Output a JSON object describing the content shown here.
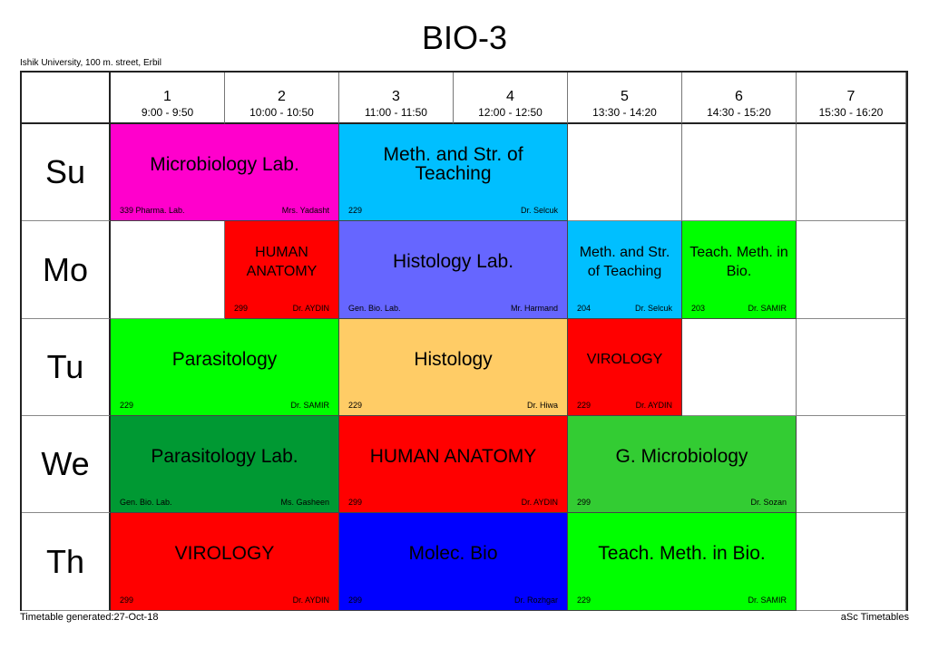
{
  "title": "BIO-3",
  "school": "Ishik University, 100 m. street, Erbil",
  "periods": [
    {
      "num": "1",
      "time": "9:00 - 9:50"
    },
    {
      "num": "2",
      "time": "10:00 - 10:50"
    },
    {
      "num": "3",
      "time": "11:00 - 11:50"
    },
    {
      "num": "4",
      "time": "12:00 - 12:50"
    },
    {
      "num": "5",
      "time": "13:30 - 14:20"
    },
    {
      "num": "6",
      "time": "14:30 - 15:20"
    },
    {
      "num": "7",
      "time": "15:30 - 16:20"
    }
  ],
  "days": [
    "Su",
    "Mo",
    "Tu",
    "We",
    "Th"
  ],
  "lessons": [
    {
      "day": 0,
      "start": 0,
      "span": 2,
      "subject": "Microbiology Lab.",
      "room": "339 Pharma. Lab.",
      "teacher": "Mrs. Yadasht",
      "color": "#ff00cc"
    },
    {
      "day": 0,
      "start": 2,
      "span": 2,
      "subject": "Meth. and Str. of Teaching",
      "room": "229",
      "teacher": "Dr. Selcuk",
      "color": "#00bfff"
    },
    {
      "day": 1,
      "start": 1,
      "span": 1,
      "subject": "HUMAN ANATOMY",
      "room": "299",
      "teacher": "Dr. AYDIN",
      "color": "#ff0000"
    },
    {
      "day": 1,
      "start": 2,
      "span": 2,
      "subject": "Histology Lab.",
      "room": "Gen. Bio. Lab.",
      "teacher": "Mr. Harmand",
      "color": "#6666ff"
    },
    {
      "day": 1,
      "start": 4,
      "span": 1,
      "subject": "Meth. and Str. of Teaching",
      "room": "204",
      "teacher": "Dr. Selcuk",
      "color": "#00bfff"
    },
    {
      "day": 1,
      "start": 5,
      "span": 1,
      "subject": "Teach. Meth. in Bio.",
      "room": "203",
      "teacher": "Dr. SAMIR",
      "color": "#00ff00"
    },
    {
      "day": 2,
      "start": 0,
      "span": 2,
      "subject": "Parasitology",
      "room": "229",
      "teacher": "Dr. SAMIR",
      "color": "#00ff00"
    },
    {
      "day": 2,
      "start": 2,
      "span": 2,
      "subject": "Histology",
      "room": "229",
      "teacher": "Dr. Hiwa",
      "color": "#ffcc66"
    },
    {
      "day": 2,
      "start": 4,
      "span": 1,
      "subject": "VIROLOGY",
      "room": "229",
      "teacher": "Dr. AYDIN",
      "color": "#ff0000"
    },
    {
      "day": 3,
      "start": 0,
      "span": 2,
      "subject": "Parasitology Lab.",
      "room": "Gen. Bio. Lab.",
      "teacher": "Ms. Gasheen",
      "color": "#009933"
    },
    {
      "day": 3,
      "start": 2,
      "span": 2,
      "subject": "HUMAN ANATOMY",
      "room": "299",
      "teacher": "Dr. AYDIN",
      "color": "#ff0000"
    },
    {
      "day": 3,
      "start": 4,
      "span": 2,
      "subject": "G. Microbiology",
      "room": "299",
      "teacher": "Dr. Sozan",
      "color": "#33cc33"
    },
    {
      "day": 4,
      "start": 0,
      "span": 2,
      "subject": "VIROLOGY",
      "room": "299",
      "teacher": "Dr. AYDIN",
      "color": "#ff0000"
    },
    {
      "day": 4,
      "start": 2,
      "span": 2,
      "subject": "Molec. Bio",
      "room": "299",
      "teacher": "Dr. Rozhgar",
      "color": "#0000ff"
    },
    {
      "day": 4,
      "start": 4,
      "span": 2,
      "subject": "Teach. Meth. in Bio.",
      "room": "229",
      "teacher": "Dr. SAMIR",
      "color": "#00ff00"
    }
  ],
  "footer": {
    "generated": "Timetable generated:27-Oct-18",
    "brand": "aSc Timetables"
  }
}
